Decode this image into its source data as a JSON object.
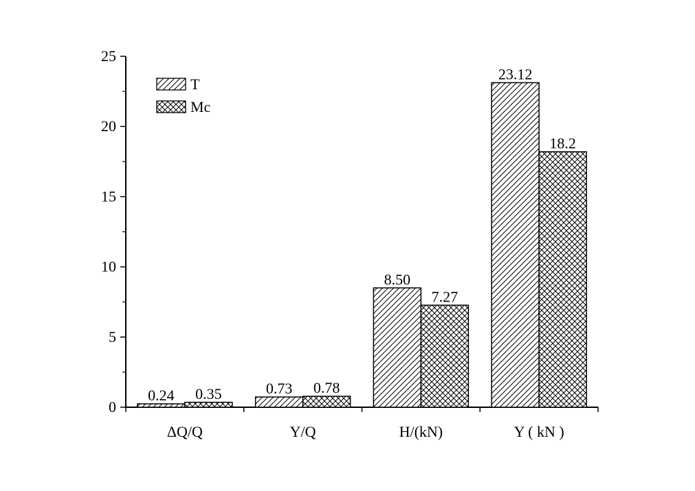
{
  "chart_data": {
    "type": "bar",
    "title": "",
    "xlabel": "",
    "ylabel": "",
    "categories": [
      "ΔQ/Q",
      "Y/Q",
      "H/(kN)",
      "Y ( kN )"
    ],
    "series": [
      {
        "name": "T",
        "values": [
          0.24,
          0.73,
          8.5,
          23.12
        ],
        "labels": [
          "0.24",
          "0.73",
          "8.50",
          "23.12"
        ],
        "pattern": "diagonal-hatch"
      },
      {
        "name": "Mc",
        "values": [
          0.35,
          0.78,
          7.27,
          18.2
        ],
        "labels": [
          "0.35",
          "0.78",
          "7.27",
          "18.2"
        ],
        "pattern": "cross-hatch"
      }
    ],
    "ylim": [
      0,
      25
    ],
    "yticks": [
      0,
      5,
      10,
      15,
      20,
      25
    ],
    "ytick_labels": [
      "0",
      "5",
      "10",
      "15",
      "20",
      "25"
    ],
    "grid": false,
    "legend_position": "top-left",
    "colors": {
      "ink": "#000000",
      "background": "#ffffff"
    }
  }
}
